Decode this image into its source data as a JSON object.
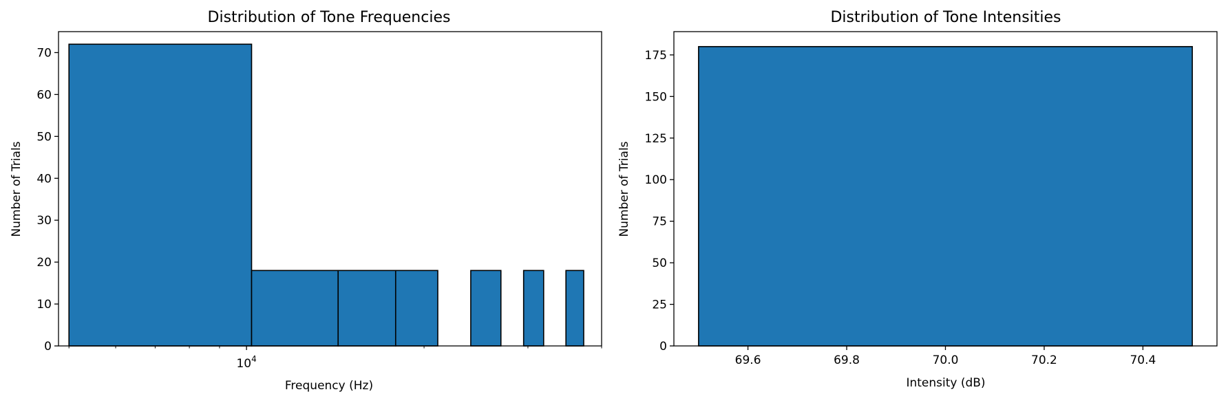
{
  "chart_data": [
    {
      "type": "bar",
      "title": "Distribution of Tone Frequencies",
      "xlabel": "Frequency (Hz)",
      "ylabel": "Number of Trials",
      "xscale": "log",
      "xlim": [
        4800,
        40000
      ],
      "ylim": [
        0,
        75
      ],
      "yticks": [
        0,
        10,
        20,
        30,
        40,
        50,
        60,
        70
      ],
      "xtick_label": "10^4",
      "xtick_value": 10000,
      "bins": [
        {
          "x0": 5000,
          "x1": 10200,
          "value": 72
        },
        {
          "x0": 10200,
          "x1": 14300,
          "value": 18
        },
        {
          "x0": 14300,
          "x1": 17900,
          "value": 18
        },
        {
          "x0": 17900,
          "x1": 21100,
          "value": 18
        },
        {
          "x0": 24000,
          "x1": 27000,
          "value": 18
        },
        {
          "x0": 29500,
          "x1": 31900,
          "value": 18
        },
        {
          "x0": 34800,
          "x1": 37300,
          "value": 18
        }
      ],
      "bar_color": "#1f77b4",
      "grid": false
    },
    {
      "type": "bar",
      "title": "Distribution of Tone Intensities",
      "xlabel": "Intensity (dB)",
      "ylabel": "Number of Trials",
      "xlim": [
        69.45,
        70.55
      ],
      "ylim": [
        0,
        189
      ],
      "yticks": [
        0,
        25,
        50,
        75,
        100,
        125,
        150,
        175
      ],
      "xticks": [
        69.6,
        69.8,
        70.0,
        70.2,
        70.4
      ],
      "bins": [
        {
          "x0": 69.5,
          "x1": 70.5,
          "value": 180
        }
      ],
      "bar_color": "#1f77b4",
      "grid": false
    }
  ]
}
